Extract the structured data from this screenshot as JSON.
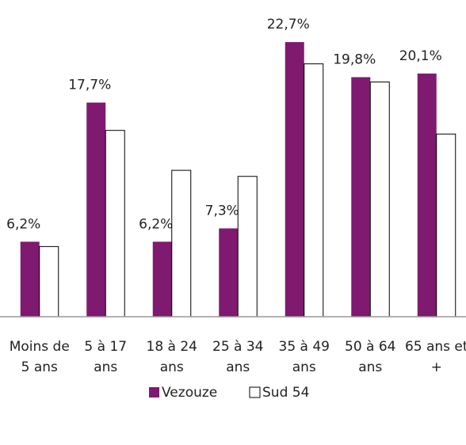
{
  "chart_data": {
    "type": "bar",
    "categories": [
      "Moins de 5 ans",
      "5 à 17 ans",
      "18 à 24 ans",
      "25 à 34 ans",
      "35 à 49 ans",
      "50 à 64 ans",
      "65 ans et +"
    ],
    "series": [
      {
        "name": "Vezouze",
        "color": "#7f1a70",
        "values": [
          6.2,
          17.7,
          6.2,
          7.3,
          22.7,
          19.8,
          20.1
        ],
        "value_labels": [
          "6,2%",
          "17,7%",
          "6,2%",
          "7,3%",
          "22,7%",
          "19,8%",
          "20,1%"
        ]
      },
      {
        "name": "Sud 54",
        "color": "#ffffff",
        "values": [
          5.8,
          15.4,
          12.1,
          11.6,
          20.9,
          19.4,
          15.1
        ]
      }
    ],
    "ylim": [
      0,
      25
    ]
  }
}
